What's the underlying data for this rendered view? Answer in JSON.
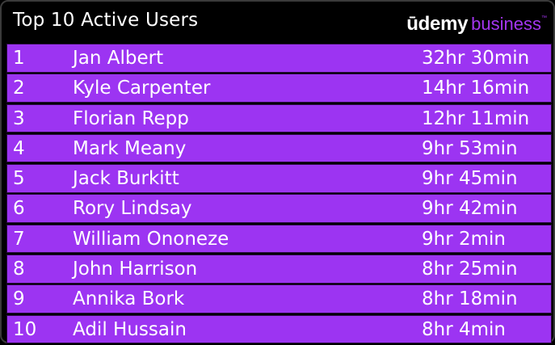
{
  "header": {
    "title": "Top 10 Active Users",
    "logo": {
      "brand": "ūdemy",
      "product": "business",
      "trademark": "™"
    }
  },
  "colors": {
    "background": "#000000",
    "row_fill": "#9c34f2",
    "row_border": "#2a0a40",
    "brand_purple": "#a435f0",
    "text": "#ffffff"
  },
  "users": [
    {
      "rank": "1",
      "name": "Jan Albert",
      "time": "32hr 30min"
    },
    {
      "rank": "2",
      "name": "Kyle Carpenter",
      "time": "14hr 16min"
    },
    {
      "rank": "3",
      "name": "Florian Repp",
      "time": "12hr 11min"
    },
    {
      "rank": "4",
      "name": "Mark Meany",
      "time": "9hr 53min"
    },
    {
      "rank": "5",
      "name": "Jack Burkitt",
      "time": "9hr 45min"
    },
    {
      "rank": "6",
      "name": "Rory Lindsay",
      "time": "9hr 42min"
    },
    {
      "rank": "7",
      "name": "William Ononeze",
      "time": "9hr 2min"
    },
    {
      "rank": "8",
      "name": "John Harrison",
      "time": "8hr 25min"
    },
    {
      "rank": "9",
      "name": "Annika Bork",
      "time": "8hr 18min"
    },
    {
      "rank": "10",
      "name": "Adil Hussain",
      "time": "8hr 4min"
    }
  ]
}
